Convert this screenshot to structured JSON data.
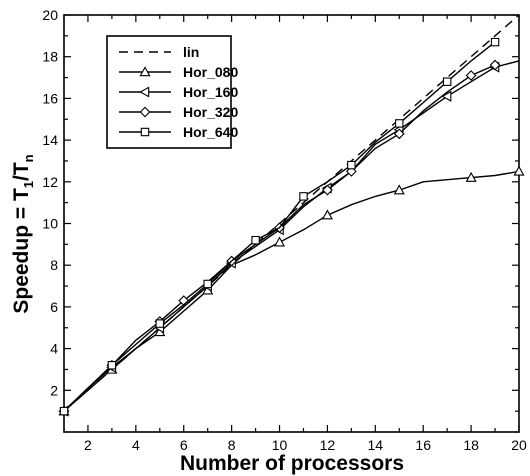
{
  "chart_data": {
    "type": "line",
    "xlabel": "Number of processors",
    "ylabel": "Speedup = T",
    "ylabel_sub1": "1",
    "ylabel_slash": "/T",
    "ylabel_subn": "n",
    "xlim": [
      1,
      20
    ],
    "ylim": [
      0,
      20
    ],
    "x_ticks": [
      2,
      4,
      6,
      8,
      10,
      12,
      14,
      16,
      18,
      20
    ],
    "y_ticks": [
      2,
      4,
      6,
      8,
      10,
      12,
      14,
      16,
      18,
      20
    ],
    "grid": false,
    "legend_position": "top-left",
    "series": [
      {
        "name": "lin",
        "style": "dashed",
        "marker": "none",
        "x": [
          1,
          20
        ],
        "y": [
          1,
          20
        ]
      },
      {
        "name": "Hor_080",
        "style": "solid",
        "marker": "triangle-up",
        "x": [
          1,
          2,
          3,
          4,
          5,
          6,
          7,
          8,
          9,
          10,
          11,
          12,
          13,
          14,
          15,
          16,
          17,
          18,
          19,
          20
        ],
        "y": [
          1,
          2.0,
          3.0,
          4.0,
          4.8,
          5.8,
          6.8,
          8.0,
          8.5,
          9.1,
          9.7,
          10.4,
          10.9,
          11.3,
          11.6,
          12.0,
          12.1,
          12.2,
          12.3,
          12.5
        ],
        "markers_at": [
          1,
          3,
          5,
          7,
          10,
          12,
          15,
          18,
          20
        ]
      },
      {
        "name": "Hor_160",
        "style": "solid",
        "marker": "triangle-left",
        "x": [
          1,
          2,
          3,
          4,
          5,
          6,
          7,
          8,
          9,
          10,
          11,
          12,
          13,
          14,
          15,
          16,
          17,
          18,
          19,
          20
        ],
        "y": [
          1,
          2.1,
          3.1,
          4.0,
          5.0,
          6.0,
          7.0,
          8.1,
          8.9,
          9.7,
          10.8,
          11.7,
          12.5,
          13.8,
          14.5,
          15.3,
          16.1,
          16.8,
          17.5,
          17.8
        ],
        "markers_at": [
          1,
          3,
          5,
          7,
          8,
          10,
          12,
          15,
          17,
          19
        ]
      },
      {
        "name": "Hor_320",
        "style": "solid",
        "marker": "diamond",
        "x": [
          1,
          2,
          3,
          4,
          5,
          6,
          7,
          8,
          9,
          10,
          11,
          12,
          13,
          14,
          15,
          16,
          17,
          18,
          19
        ],
        "y": [
          1,
          2.1,
          3.2,
          4.4,
          5.3,
          6.3,
          7.2,
          8.2,
          9.0,
          9.8,
          10.9,
          11.6,
          12.5,
          13.6,
          14.3,
          15.4,
          16.3,
          17.1,
          17.6
        ],
        "markers_at": [
          1,
          3,
          5,
          6,
          8,
          10,
          12,
          13,
          15,
          18,
          19
        ]
      },
      {
        "name": "Hor_640",
        "style": "solid",
        "marker": "square",
        "x": [
          1,
          2,
          3,
          4,
          5,
          6,
          7,
          8,
          9,
          10,
          11,
          12,
          13,
          14,
          15,
          16,
          17,
          18,
          19
        ],
        "y": [
          1,
          2.1,
          3.2,
          4.2,
          5.2,
          6.1,
          7.1,
          8.2,
          9.2,
          9.8,
          11.3,
          12.0,
          12.8,
          13.9,
          14.8,
          15.8,
          16.8,
          17.8,
          18.7
        ],
        "markers_at": [
          1,
          3,
          5,
          7,
          9,
          11,
          13,
          15,
          17,
          19
        ]
      }
    ]
  }
}
